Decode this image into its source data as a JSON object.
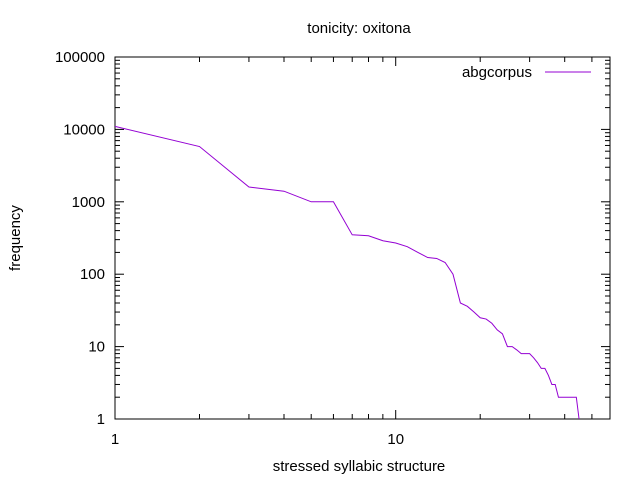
{
  "chart_data": {
    "type": "line",
    "title": "tonicity: oxitona",
    "xlabel": "stressed syllabic structure",
    "ylabel": "frequency",
    "x_scale": "log",
    "y_scale": "log",
    "xlim": [
      1,
      58
    ],
    "ylim": [
      1,
      100000
    ],
    "x_ticks": [
      {
        "value": 1,
        "label": "1"
      },
      {
        "value": 10,
        "label": "10"
      }
    ],
    "y_ticks": [
      {
        "value": 1,
        "label": "1"
      },
      {
        "value": 10,
        "label": "10"
      },
      {
        "value": 100,
        "label": "100"
      },
      {
        "value": 1000,
        "label": "1000"
      },
      {
        "value": 10000,
        "label": "10000"
      },
      {
        "value": 100000,
        "label": "100000"
      }
    ],
    "grid": false,
    "legend": "top-right",
    "series": [
      {
        "name": "abgcorpus",
        "color": "#9400d3",
        "x": [
          1,
          2,
          3,
          4,
          5,
          6,
          7,
          8,
          9,
          10,
          11,
          12,
          13,
          14,
          15,
          16,
          17,
          18,
          19,
          20,
          21,
          22,
          23,
          24,
          25,
          26,
          27,
          28,
          29,
          30,
          31,
          32,
          33,
          34,
          35,
          36,
          37,
          38,
          39,
          40,
          41,
          42,
          43,
          44,
          45
        ],
        "y": [
          11000,
          5800,
          1600,
          1400,
          1000,
          1000,
          350,
          340,
          290,
          270,
          240,
          200,
          170,
          165,
          145,
          100,
          40,
          36,
          30,
          25,
          24,
          21,
          17,
          15,
          10,
          10,
          9,
          8,
          8,
          8,
          7,
          6,
          5,
          5,
          4,
          3,
          3,
          2,
          2,
          2,
          2,
          2,
          2,
          2,
          1
        ]
      }
    ]
  }
}
